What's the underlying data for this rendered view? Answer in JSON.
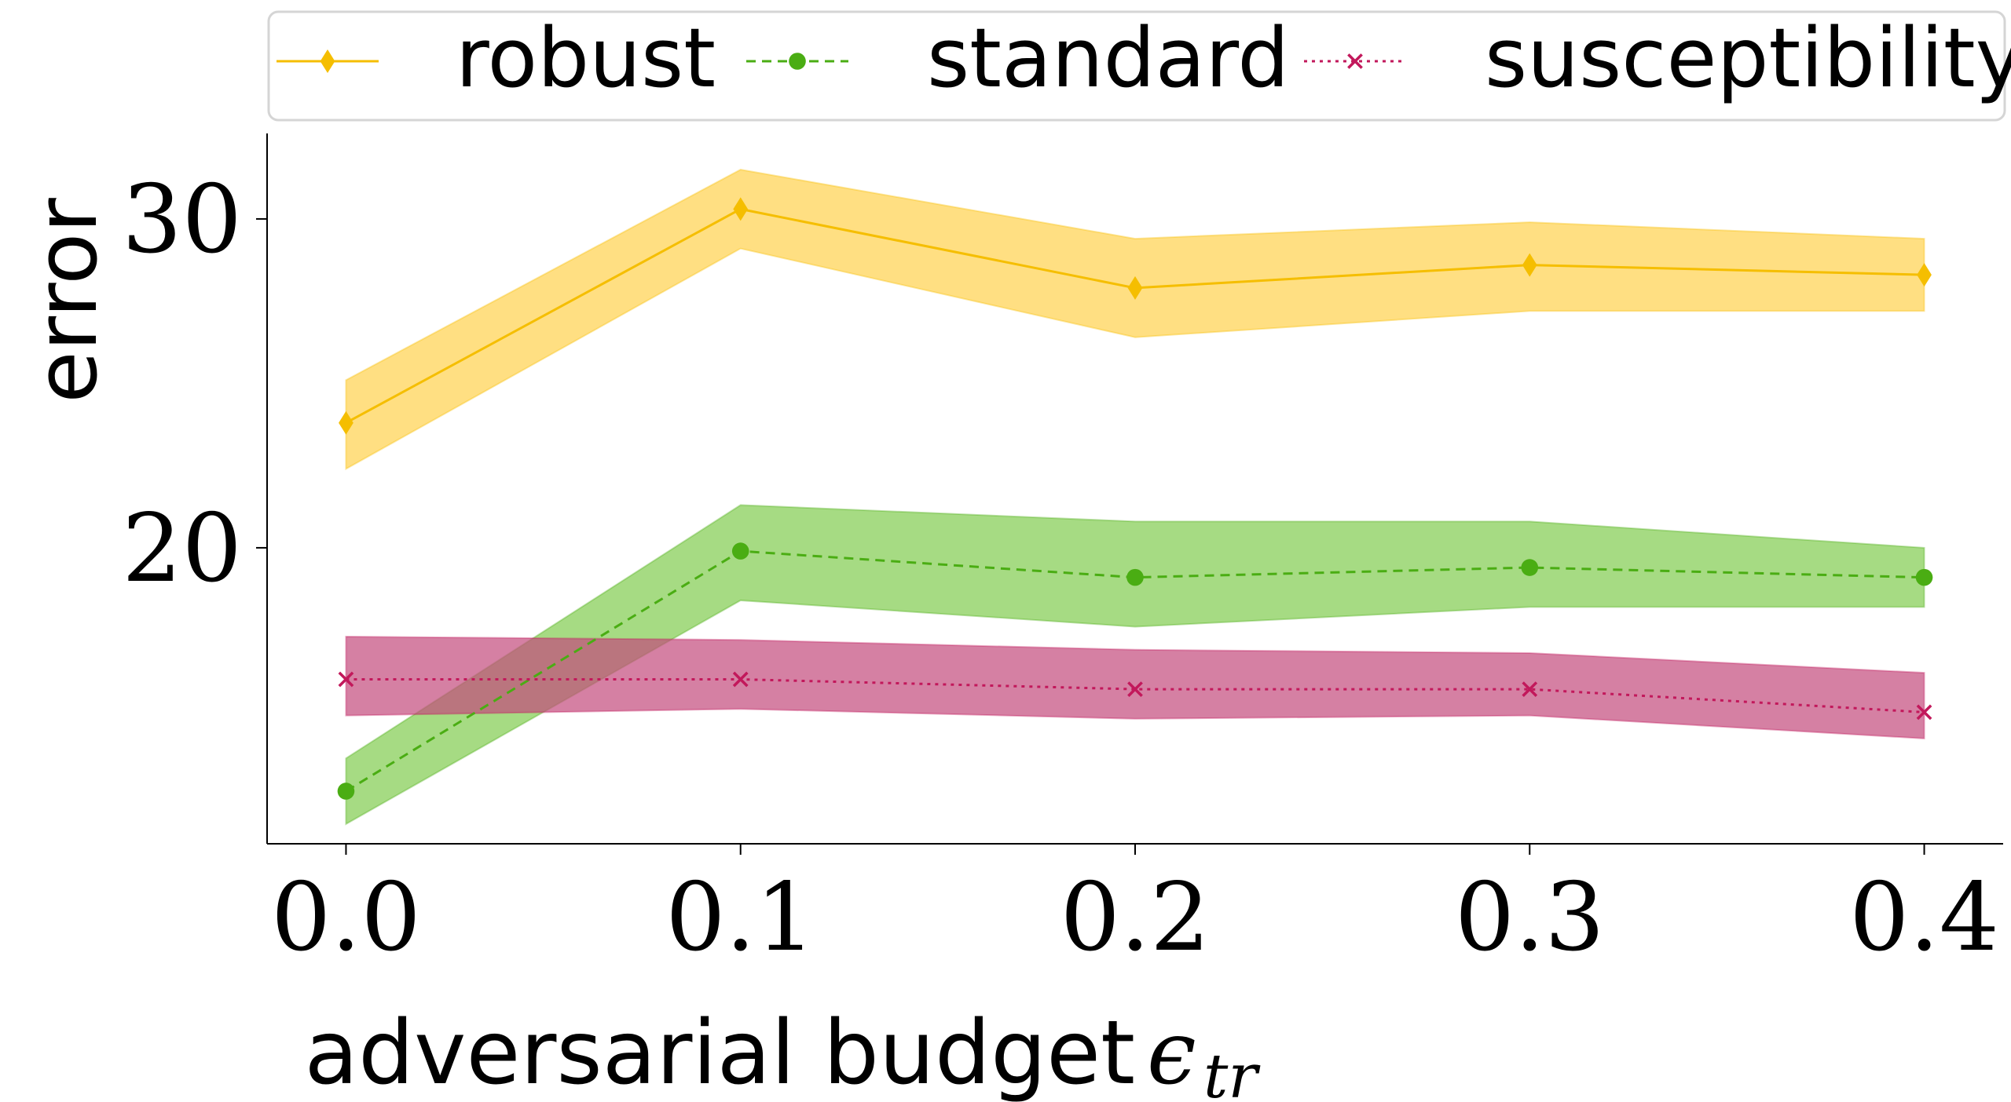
{
  "chart_data": {
    "type": "line",
    "x": [
      0.0,
      0.1,
      0.2,
      0.3,
      0.4
    ],
    "x_tick_labels": [
      "0.0",
      "0.1",
      "0.2",
      "0.3",
      "0.4"
    ],
    "y_ticks": [
      20,
      30
    ],
    "y_tick_labels": [
      "20",
      "30"
    ],
    "xlim": [
      -0.02,
      0.42
    ],
    "ylim": [
      11.0,
      32.6
    ],
    "xlabel": "adversarial budget",
    "xlabel_symbol": "ϵ",
    "xlabel_subscript": "tr",
    "ylabel": "error",
    "grid": false,
    "legend_position": "top",
    "series": [
      {
        "name": "robust",
        "color": "#f5be00",
        "band_color": "#ffd24d",
        "marker": "diamond",
        "line_style": "solid",
        "values": [
          23.8,
          30.3,
          27.9,
          28.6,
          28.3
        ],
        "lower": [
          22.4,
          29.1,
          26.4,
          27.2,
          27.2
        ],
        "upper": [
          25.1,
          31.5,
          29.4,
          29.9,
          29.4
        ]
      },
      {
        "name": "standard",
        "color": "#4aad13",
        "band_color": "#80cc4f",
        "marker": "circle",
        "line_style": "dashed",
        "values": [
          12.6,
          19.9,
          19.1,
          19.4,
          19.1
        ],
        "lower": [
          11.6,
          18.4,
          17.6,
          18.2,
          18.2
        ],
        "upper": [
          13.6,
          21.3,
          20.8,
          20.8,
          20.0
        ]
      },
      {
        "name": "susceptibility",
        "color": "#c2185b",
        "band_color": "#c34a7c",
        "marker": "x",
        "line_style": "dotted",
        "values": [
          16.0,
          16.0,
          15.7,
          15.7,
          15.0
        ],
        "lower": [
          14.9,
          15.1,
          14.8,
          14.9,
          14.2
        ],
        "upper": [
          17.3,
          17.2,
          16.9,
          16.8,
          16.2
        ]
      }
    ]
  }
}
